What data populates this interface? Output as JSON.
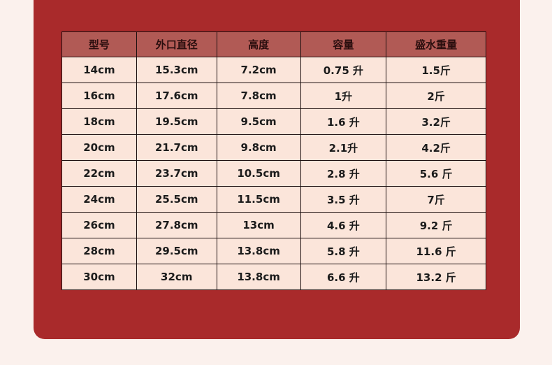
{
  "table": {
    "headers": [
      "型号",
      "外口直径",
      "高度",
      "容量",
      "盛水重量"
    ],
    "rows": [
      [
        "14cm",
        "15.3cm",
        "7.2cm",
        "0.75 升",
        "1.5斤"
      ],
      [
        "16cm",
        "17.6cm",
        "7.8cm",
        "1升",
        "2斤"
      ],
      [
        "18cm",
        "19.5cm",
        "9.5cm",
        "1.6 升",
        "3.2斤"
      ],
      [
        "20cm",
        "21.7cm",
        "9.8cm",
        "2.1升",
        "4.2斤"
      ],
      [
        "22cm",
        "23.7cm",
        "10.5cm",
        "2.8 升",
        "5.6 斤"
      ],
      [
        "24cm",
        "25.5cm",
        "11.5cm",
        "3.5 升",
        "7斤"
      ],
      [
        "26cm",
        "27.8cm",
        "13cm",
        "4.6 升",
        "9.2 斤"
      ],
      [
        "28cm",
        "29.5cm",
        "13.8cm",
        "5.8 升",
        "11.6 斤"
      ],
      [
        "30cm",
        "32cm",
        "13.8cm",
        "6.6 升",
        "13.2 斤"
      ]
    ]
  },
  "colors": {
    "background": "#fbf1ed",
    "panel": "#a92a2b",
    "header": "#b15a55",
    "cell": "#fbe5da"
  }
}
